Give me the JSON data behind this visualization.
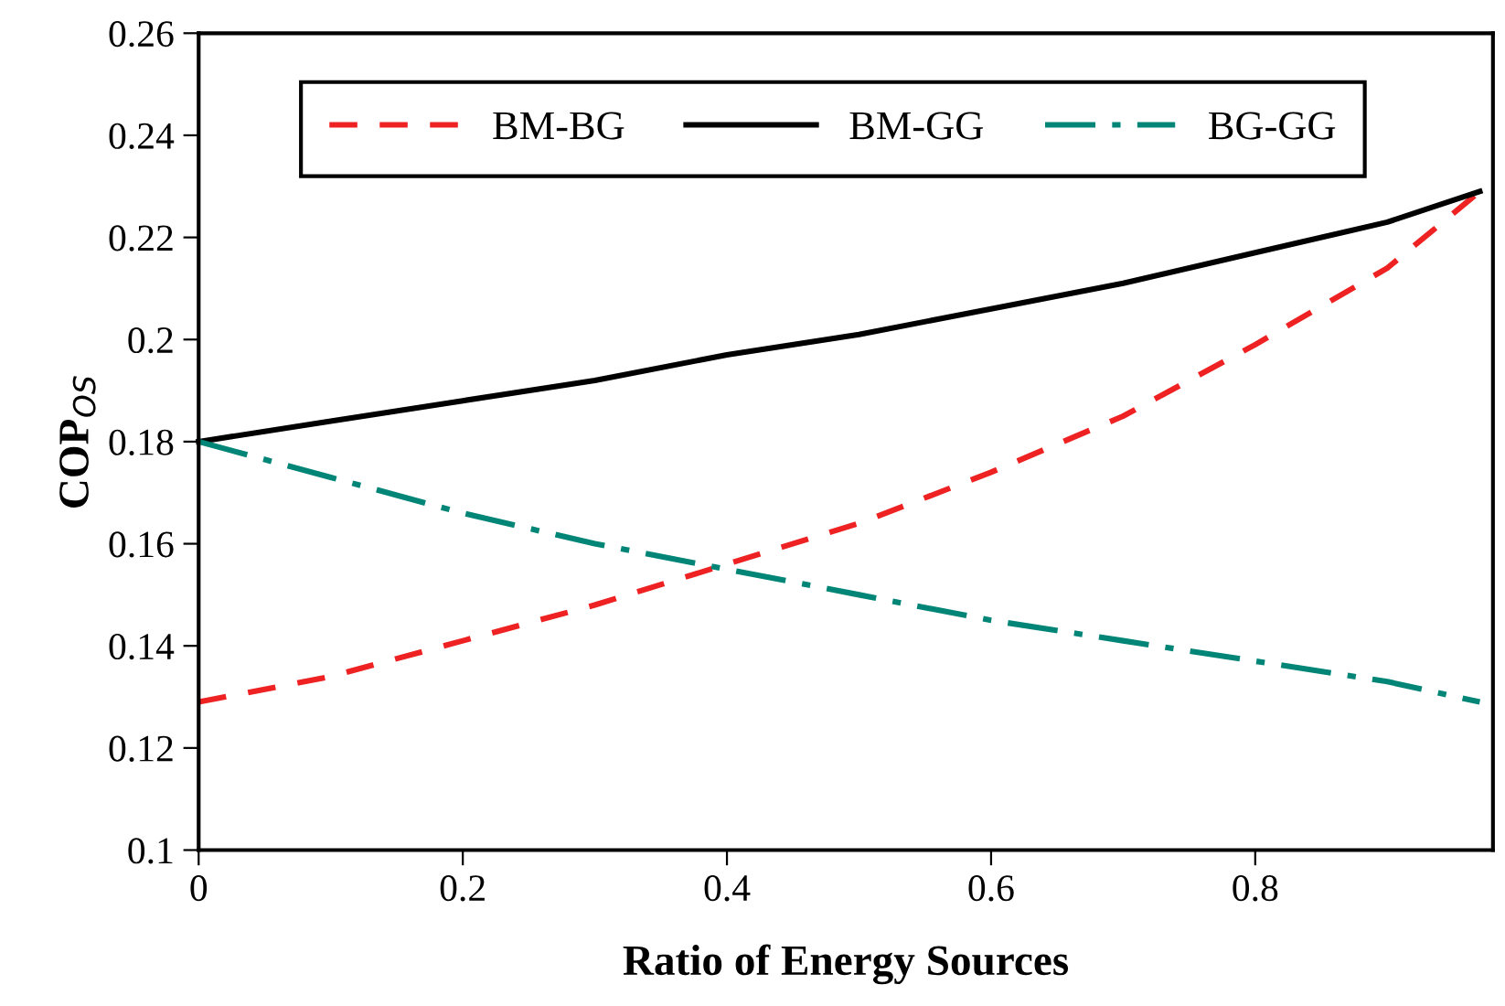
{
  "chart_data": {
    "type": "line",
    "xlabel": "Ratio of Energy Sources",
    "ylabel": "COP$_{OS}$",
    "x": [
      0,
      0.1,
      0.2,
      0.3,
      0.4,
      0.5,
      0.6,
      0.7,
      0.8,
      0.9,
      0.97
    ],
    "series": [
      {
        "name": "BM-BG",
        "color": "#ee2222",
        "line_style": "dashed",
        "values": [
          0.129,
          0.134,
          0.141,
          0.148,
          0.156,
          0.164,
          0.174,
          0.185,
          0.199,
          0.214,
          0.229
        ]
      },
      {
        "name": "BM-GG",
        "color": "#000000",
        "line_style": "solid",
        "values": [
          0.18,
          0.184,
          0.188,
          0.192,
          0.197,
          0.201,
          0.206,
          0.211,
          0.217,
          0.223,
          0.229
        ]
      },
      {
        "name": "BG-GG",
        "color": "#008577",
        "line_style": "dashdot",
        "values": [
          0.18,
          0.173,
          0.166,
          0.16,
          0.155,
          0.15,
          0.145,
          0.141,
          0.137,
          0.133,
          0.129
        ]
      }
    ],
    "xlim": [
      0,
      0.98
    ],
    "xticks": [
      0,
      0.2,
      0.4,
      0.6,
      0.8
    ],
    "ylim": [
      0.1,
      0.26
    ],
    "yticks": [
      0.1,
      0.12,
      0.14,
      0.16,
      0.18,
      0.2,
      0.22,
      0.24,
      0.26
    ],
    "grid": false,
    "legend": "top"
  }
}
